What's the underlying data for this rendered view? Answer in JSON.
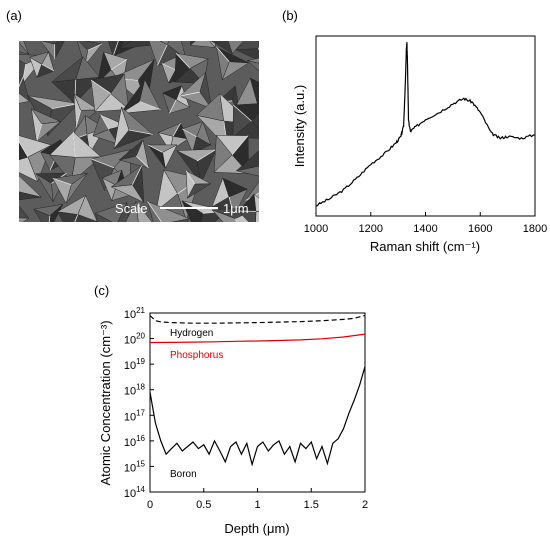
{
  "panels": {
    "a": "(a)",
    "b": "(b)",
    "c": "(c)"
  },
  "sem": {
    "scale_label": "Scale",
    "scale_value": "1μm"
  },
  "colors": {
    "hydrogen": "#000000",
    "phosphorus": "#e00000",
    "boron": "#000000",
    "raman": "#000000"
  },
  "chart_data": [
    {
      "type": "line",
      "xlabel": "Raman shift (cm⁻¹)",
      "ylabel": "Intensity (a.u.)",
      "xlim": [
        1000,
        1800
      ],
      "xticks": [
        "1000",
        "1200",
        "1400",
        "1600",
        "1800"
      ],
      "yticks_shown": false,
      "series": [
        {
          "x": [
            1000,
            1050,
            1100,
            1150,
            1200,
            1250,
            1290,
            1310,
            1320,
            1326,
            1330,
            1332,
            1334,
            1338,
            1345,
            1360,
            1400,
            1450,
            1500,
            1540,
            1570,
            1600,
            1640,
            1670,
            1700,
            1750,
            1800
          ],
          "y": [
            0.06,
            0.1,
            0.15,
            0.22,
            0.3,
            0.36,
            0.42,
            0.46,
            0.52,
            0.75,
            0.96,
            1.0,
            0.9,
            0.55,
            0.49,
            0.51,
            0.56,
            0.6,
            0.65,
            0.68,
            0.66,
            0.6,
            0.48,
            0.45,
            0.46,
            0.45,
            0.47
          ]
        }
      ]
    },
    {
      "type": "line",
      "xlabel": "Depth (μm)",
      "ylabel": "Atomic Concentration (cm⁻³)",
      "xlim": [
        0,
        2
      ],
      "ylim": [
        100000000000000.0,
        1e+21
      ],
      "yscale": "log",
      "xticks": [
        "0",
        "0.5",
        "1",
        "1.5",
        "2"
      ],
      "yticks": [
        {
          "base": "10",
          "exp": "14"
        },
        {
          "base": "10",
          "exp": "15"
        },
        {
          "base": "10",
          "exp": "16"
        },
        {
          "base": "10",
          "exp": "17"
        },
        {
          "base": "10",
          "exp": "18"
        },
        {
          "base": "10",
          "exp": "19"
        },
        {
          "base": "10",
          "exp": "20"
        },
        {
          "base": "10",
          "exp": "21"
        }
      ],
      "series": [
        {
          "name": "Hydrogen",
          "style": "dashed",
          "x": [
            0,
            0.05,
            0.1,
            0.2,
            0.4,
            0.6,
            0.8,
            1.0,
            1.2,
            1.4,
            1.6,
            1.8,
            1.9,
            2.0
          ],
          "y": [
            8e+20,
            5e+20,
            4.5e+20,
            4.2e+20,
            4e+20,
            4e+20,
            4.1e+20,
            4.2e+20,
            4.4e+20,
            4.6e+20,
            5e+20,
            5.6e+20,
            6.2e+20,
            8e+20
          ]
        },
        {
          "name": "Phosphorus",
          "style": "solid",
          "x": [
            0,
            0.2,
            0.4,
            0.6,
            0.8,
            1.0,
            1.2,
            1.4,
            1.6,
            1.8,
            2.0
          ],
          "y": [
            7e+19,
            7.1e+19,
            7.3e+19,
            7.5e+19,
            7.8e+19,
            8e+19,
            8.4e+19,
            8.9e+19,
            9.8e+19,
            1.15e+20,
            1.5e+20
          ]
        },
        {
          "name": "Boron",
          "style": "solid",
          "x": [
            0,
            0.05,
            0.1,
            0.15,
            0.2,
            0.25,
            0.3,
            0.35,
            0.4,
            0.45,
            0.5,
            0.55,
            0.6,
            0.65,
            0.7,
            0.75,
            0.8,
            0.85,
            0.9,
            0.95,
            1.0,
            1.05,
            1.1,
            1.15,
            1.2,
            1.25,
            1.3,
            1.35,
            1.4,
            1.45,
            1.5,
            1.55,
            1.6,
            1.65,
            1.7,
            1.75,
            1.8,
            1.85,
            1.9,
            1.95,
            2.0
          ],
          "y": [
            8e+17,
            5e+16,
            1e+16,
            3000000000000000.0,
            5000000000000000.0,
            8000000000000000.0,
            4000000000000000.0,
            6000000000000000.0,
            9000000000000000.0,
            5000000000000000.0,
            7000000000000000.0,
            3000000000000000.0,
            1e+16,
            4000000000000000.0,
            1500000000000000.0,
            6000000000000000.0,
            9000000000000000.0,
            3000000000000000.0,
            8000000000000000.0,
            1200000000000000.0,
            6000000000000000.0,
            9000000000000000.0,
            4000000000000000.0,
            7000000000000000.0,
            1e+16,
            3000000000000000.0,
            6000000000000000.0,
            1500000000000000.0,
            8000000000000000.0,
            5000000000000000.0,
            9000000000000000.0,
            2000000000000000.0,
            6000000000000000.0,
            1300000000000000.0,
            8000000000000000.0,
            1.2e+16,
            3e+16,
            1.2e+17,
            4e+17,
            1.5e+18,
            8e+18
          ]
        }
      ]
    }
  ]
}
